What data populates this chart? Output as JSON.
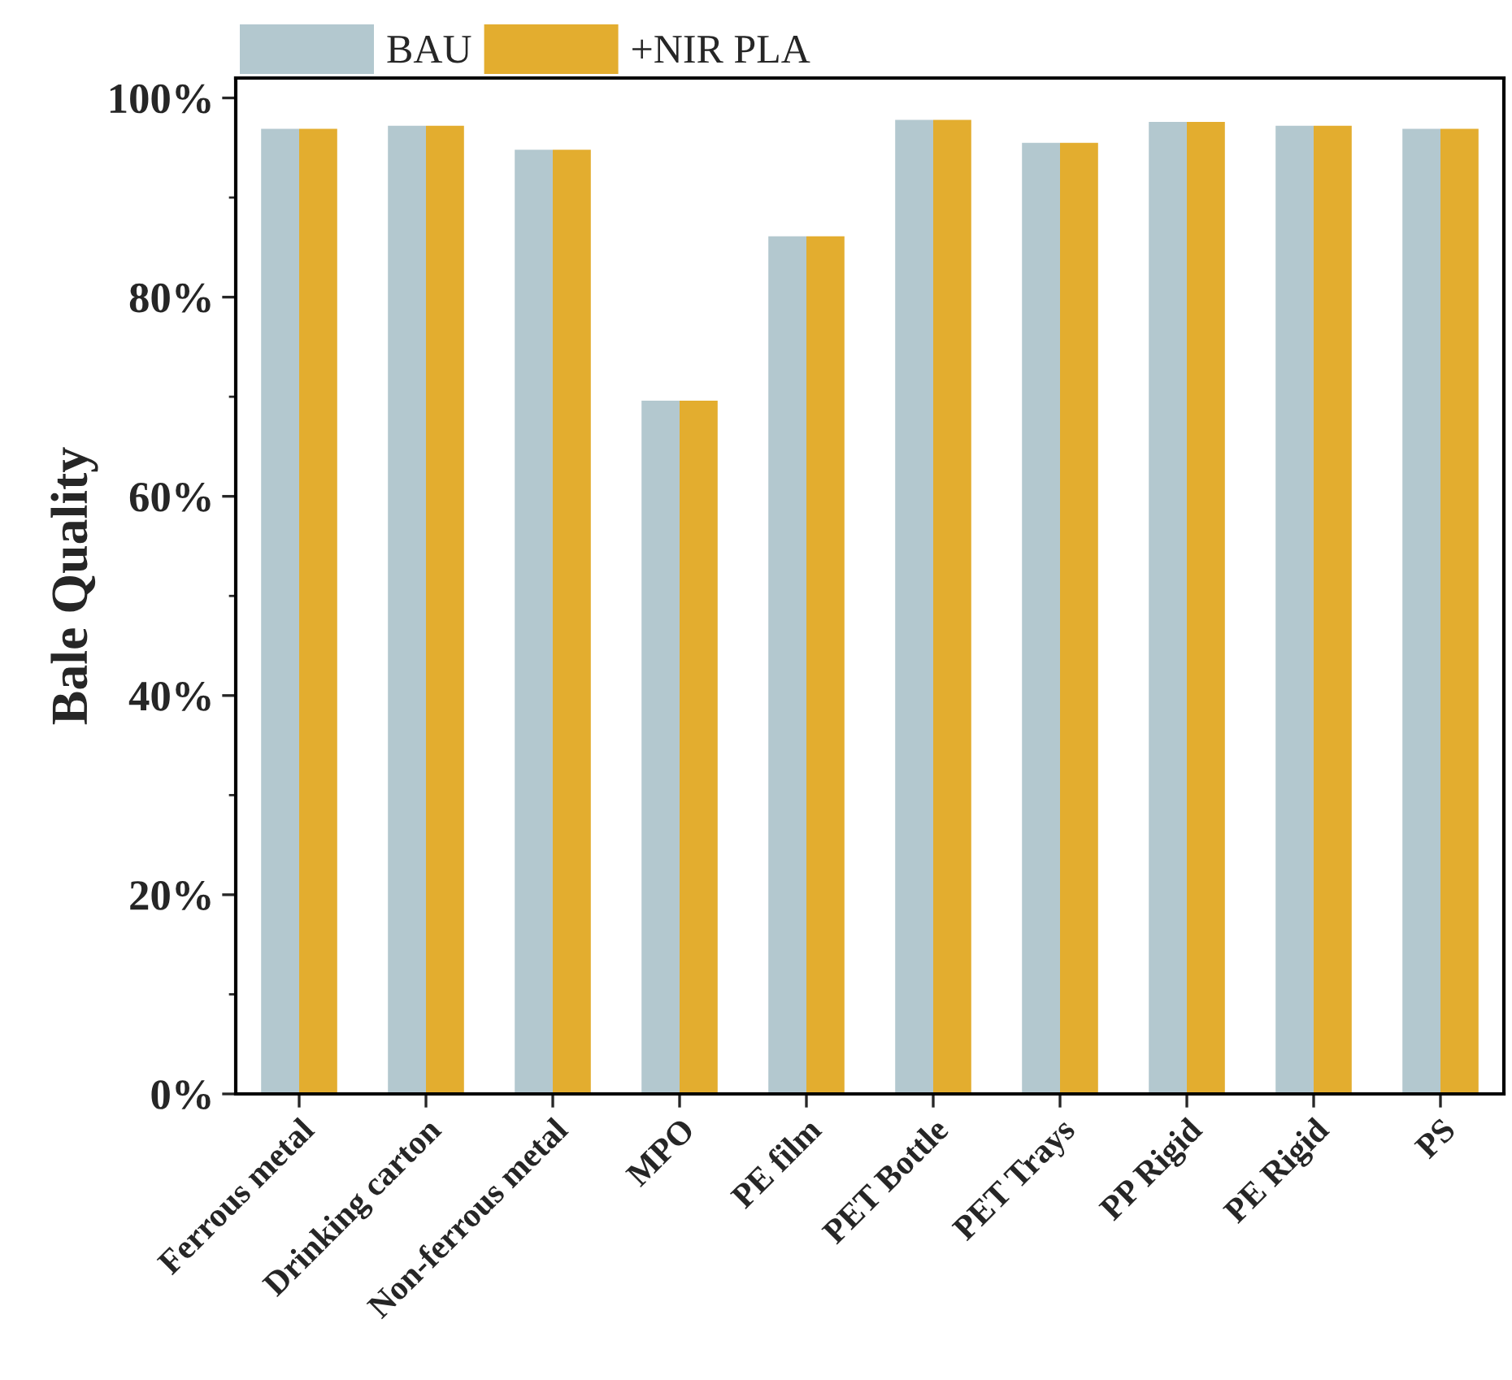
{
  "chart_data": {
    "type": "bar",
    "ylabel": "Bale Quality",
    "categories": [
      "Ferrous metal",
      "Drinking carton",
      "Non-ferrous metal",
      "MPO",
      "PE film",
      "PET Bottle",
      "PET Trays",
      "PP Rigid",
      "PE Rigid",
      "PS"
    ],
    "series": [
      {
        "name": "BAU",
        "color": "#b3c8cf",
        "values": [
          96.9,
          97.2,
          94.8,
          69.6,
          86.1,
          97.8,
          95.5,
          97.6,
          97.2,
          96.9
        ]
      },
      {
        "name": "+NIR PLA",
        "color": "#e3ad2f",
        "values": [
          96.9,
          97.2,
          94.8,
          69.6,
          86.1,
          97.8,
          95.5,
          97.6,
          97.2,
          96.9
        ]
      }
    ],
    "ylim": [
      0,
      102
    ],
    "yticks": [
      {
        "value": 0,
        "label": "0%"
      },
      {
        "value": 20,
        "label": "20%"
      },
      {
        "value": 40,
        "label": "40%"
      },
      {
        "value": 60,
        "label": "60%"
      },
      {
        "value": 80,
        "label": "80%"
      },
      {
        "value": 100,
        "label": "100%"
      }
    ],
    "grid": false,
    "legend": "top left"
  }
}
